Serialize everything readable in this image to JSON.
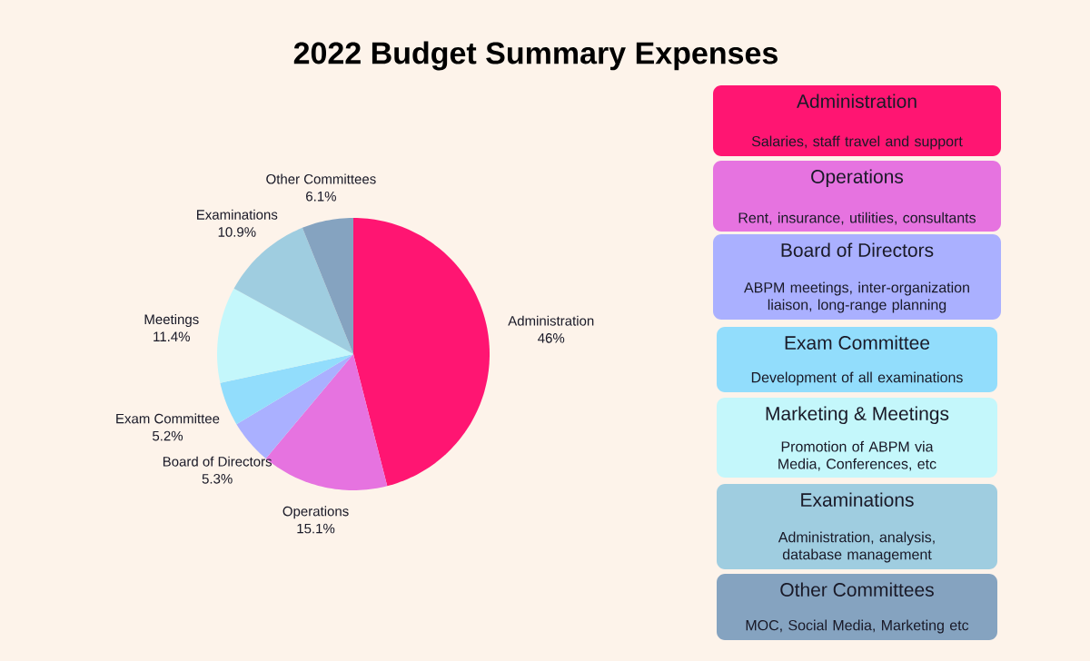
{
  "chart_data": [
    {
      "type": "pie",
      "title": "2022 Budget Summary Expenses",
      "categories": [
        "Administration",
        "Operations",
        "Board of Directors",
        "Exam Committee",
        "Meetings",
        "Examinations",
        "Other Committees"
      ],
      "values": [
        46,
        15.1,
        5.3,
        5.2,
        11.4,
        10.9,
        6.1
      ],
      "value_labels": [
        "46%",
        "15.1%",
        "5.3%",
        "5.2%",
        "11.4%",
        "10.9%",
        "6.1%"
      ],
      "colors": [
        "#ff1572",
        "#e673e0",
        "#aab0ff",
        "#92ddfc",
        "#c4f7fb",
        "#9fcde0",
        "#85a3c0"
      ]
    },
    {
      "type": "other",
      "categories": [
        "Administration",
        "Operations",
        "Board of Directors",
        "Exam Committee",
        "Marketing & Meetings",
        "Examinations",
        "Other Committees"
      ],
      "annotations": [
        "Salaries, staff travel and support",
        "Rent, insurance, utilities, consultants",
        "ABPM meetings, inter-organization liaison, long-range planning",
        "Development of all examinations",
        "Promotion of ABPM via Media, Conferences, etc",
        "Administration, analysis, database management",
        "MOC, Social Media, Marketing etc"
      ],
      "colors": [
        "#ff1572",
        "#e673e0",
        "#aab0ff",
        "#92ddfc",
        "#c4f7fb",
        "#9fcde0",
        "#85a3c0"
      ]
    }
  ]
}
